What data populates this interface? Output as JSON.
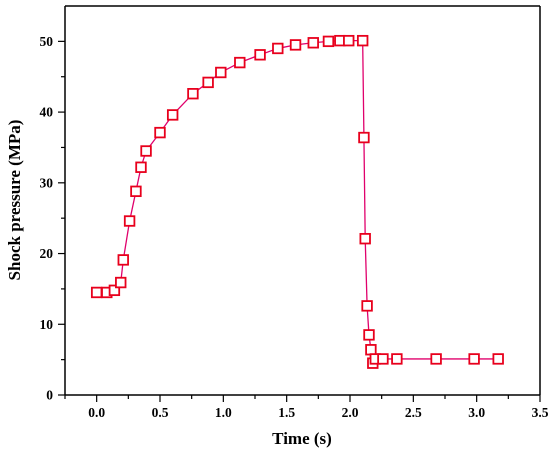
{
  "chart_data": {
    "type": "line",
    "xlabel": "Time (s)",
    "ylabel": "Shock pressure (MPa)",
    "xlim": [
      -0.25,
      3.5
    ],
    "ylim": [
      0,
      55
    ],
    "x_ticks": [
      "0.0",
      "0.5",
      "1.0",
      "1.5",
      "2.0",
      "2.5",
      "3.0",
      "3.5"
    ],
    "y_ticks": [
      "0",
      "10",
      "20",
      "30",
      "40",
      "50"
    ],
    "grid": false,
    "series": [
      {
        "line_color": "#e0006c",
        "marker_color": "#e8001c",
        "marker": "open-square",
        "x": [
          0.0,
          0.08,
          0.14,
          0.19,
          0.21,
          0.26,
          0.31,
          0.35,
          0.39,
          0.5,
          0.6,
          0.76,
          0.88,
          0.98,
          1.13,
          1.29,
          1.43,
          1.57,
          1.71,
          1.83,
          1.92,
          1.99,
          2.1,
          2.11,
          2.12,
          2.135,
          2.15,
          2.165,
          2.18,
          2.2,
          2.26,
          2.37,
          2.68,
          2.98,
          3.17
        ],
        "y": [
          14.5,
          14.5,
          14.8,
          15.9,
          19.1,
          24.6,
          28.8,
          32.2,
          34.5,
          37.1,
          39.6,
          42.6,
          44.2,
          45.6,
          47.0,
          48.1,
          49.0,
          49.5,
          49.8,
          50.0,
          50.1,
          50.1,
          50.1,
          36.4,
          22.1,
          12.6,
          8.5,
          6.4,
          4.5,
          5.1,
          5.1,
          5.1,
          5.1,
          5.1,
          5.1
        ]
      }
    ]
  }
}
